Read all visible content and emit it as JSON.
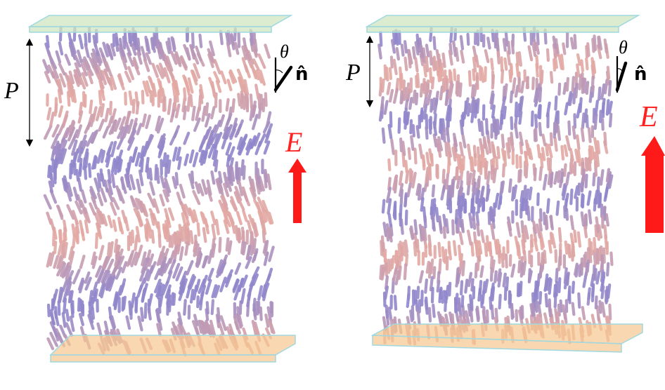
{
  "panels": [
    {
      "id": "left",
      "pitch_label": "P",
      "angle_symbol": "θ",
      "director_label": "n̂",
      "field_label": "E",
      "field_strength": "weak",
      "tilt_amplitude_deg": 22,
      "helix_periods_visible": 2.3
    },
    {
      "id": "right",
      "pitch_label": "P",
      "angle_symbol": "θ",
      "director_label": "n̂",
      "field_label": "E",
      "field_strength": "strong",
      "tilt_amplitude_deg": 8,
      "helix_periods_visible": 3.4
    }
  ],
  "colors": {
    "top_plate": "#cfe6c0",
    "bottom_plate": "#f6c890",
    "plate_edge": "#9fd8e0",
    "molecule_blue": "#8f86cc",
    "molecule_pink": "#e3a9a3",
    "field_arrow": "#ff1a1a",
    "field_label": "#ff2020",
    "annotation": "#000000"
  }
}
